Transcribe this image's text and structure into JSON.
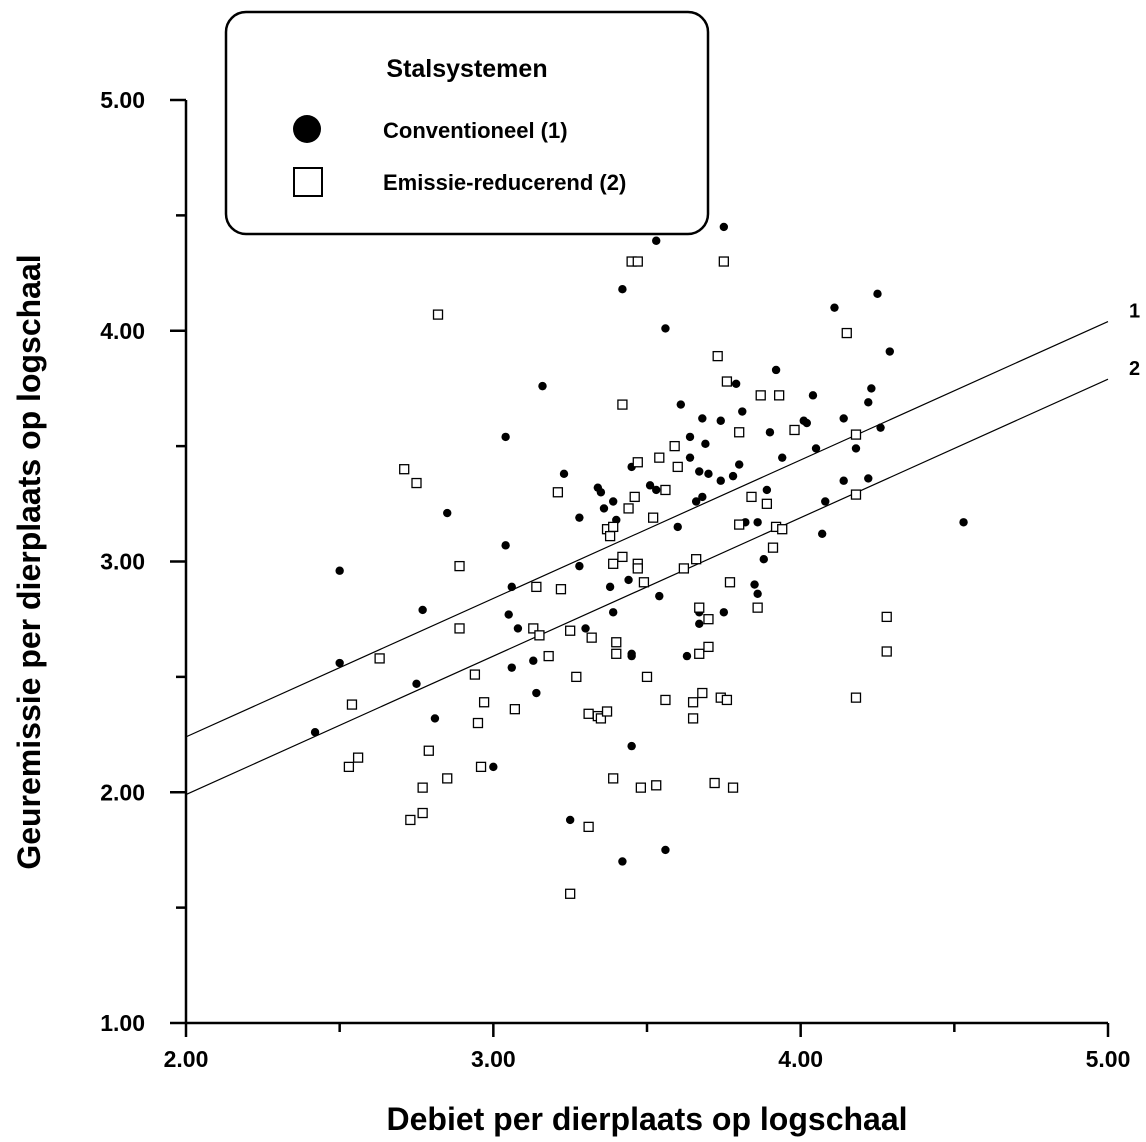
{
  "chart_data": {
    "type": "scatter",
    "xlabel": "Debiet per dierplaats op logschaal",
    "ylabel": "Geuremissie per dierplaats op logschaal",
    "xlim": [
      2.0,
      5.0
    ],
    "ylim": [
      1.0,
      5.0
    ],
    "x_ticks": [
      "2.00",
      "3.00",
      "4.00",
      "5.00"
    ],
    "y_ticks": [
      "1.00",
      "2.00",
      "3.00",
      "4.00",
      "5.00"
    ],
    "x_tick_values": [
      2.0,
      3.0,
      4.0,
      5.0
    ],
    "y_tick_values": [
      1.0,
      2.0,
      3.0,
      4.0,
      5.0
    ],
    "x_minor_ticks": [
      2.5,
      3.5,
      4.5
    ],
    "y_minor_ticks": [
      1.5,
      2.5,
      3.5,
      4.5
    ],
    "grid": false,
    "legend": {
      "title": "Stalsystemen",
      "position": "top-left",
      "entries": [
        "Conventioneel (1)",
        "Emissie-reducerend (2)"
      ]
    },
    "series": [
      {
        "name": "Conventioneel (1)",
        "marker": "filled-circle",
        "color": "#000000",
        "points": [
          [
            2.42,
            2.26
          ],
          [
            2.5,
            2.56
          ],
          [
            2.5,
            2.96
          ],
          [
            2.75,
            2.47
          ],
          [
            2.77,
            2.79
          ],
          [
            2.81,
            2.32
          ],
          [
            2.85,
            3.21
          ],
          [
            2.94,
            2.51
          ],
          [
            3.0,
            2.11
          ],
          [
            3.04,
            3.07
          ],
          [
            3.04,
            3.54
          ],
          [
            3.05,
            2.77
          ],
          [
            3.06,
            2.54
          ],
          [
            3.06,
            2.89
          ],
          [
            3.08,
            2.71
          ],
          [
            3.13,
            2.57
          ],
          [
            3.14,
            2.43
          ],
          [
            3.16,
            3.76
          ],
          [
            3.23,
            3.38
          ],
          [
            3.25,
            1.88
          ],
          [
            3.28,
            2.98
          ],
          [
            3.28,
            3.19
          ],
          [
            3.3,
            2.71
          ],
          [
            3.34,
            3.32
          ],
          [
            3.35,
            3.3
          ],
          [
            3.36,
            3.23
          ],
          [
            3.38,
            2.89
          ],
          [
            3.39,
            2.78
          ],
          [
            3.39,
            3.26
          ],
          [
            3.4,
            3.18
          ],
          [
            3.42,
            1.7
          ],
          [
            3.42,
            3.02
          ],
          [
            3.42,
            4.18
          ],
          [
            3.44,
            2.92
          ],
          [
            3.45,
            2.59
          ],
          [
            3.45,
            2.6
          ],
          [
            3.45,
            2.2
          ],
          [
            3.45,
            3.41
          ],
          [
            3.51,
            3.33
          ],
          [
            3.53,
            4.39
          ],
          [
            3.53,
            3.31
          ],
          [
            3.54,
            2.85
          ],
          [
            3.56,
            1.75
          ],
          [
            3.56,
            4.01
          ],
          [
            3.6,
            3.15
          ],
          [
            3.61,
            3.68
          ],
          [
            3.63,
            2.59
          ],
          [
            3.64,
            3.54
          ],
          [
            3.64,
            3.45
          ],
          [
            3.66,
            3.26
          ],
          [
            3.67,
            2.78
          ],
          [
            3.67,
            2.73
          ],
          [
            3.67,
            3.39
          ],
          [
            3.68,
            3.62
          ],
          [
            3.68,
            3.28
          ],
          [
            3.69,
            3.51
          ],
          [
            3.7,
            3.38
          ],
          [
            3.74,
            3.61
          ],
          [
            3.74,
            3.35
          ],
          [
            3.75,
            4.45
          ],
          [
            3.75,
            2.78
          ],
          [
            3.78,
            3.37
          ],
          [
            3.79,
            3.77
          ],
          [
            3.8,
            3.42
          ],
          [
            3.81,
            3.65
          ],
          [
            3.82,
            3.17
          ],
          [
            3.85,
            2.9
          ],
          [
            3.86,
            3.17
          ],
          [
            3.86,
            2.86
          ],
          [
            3.88,
            3.01
          ],
          [
            3.89,
            3.31
          ],
          [
            3.9,
            3.56
          ],
          [
            3.92,
            3.83
          ],
          [
            3.94,
            3.45
          ],
          [
            4.01,
            3.61
          ],
          [
            4.02,
            3.6
          ],
          [
            4.04,
            3.72
          ],
          [
            4.05,
            3.49
          ],
          [
            4.07,
            3.12
          ],
          [
            4.08,
            3.26
          ],
          [
            4.11,
            4.1
          ],
          [
            4.14,
            3.62
          ],
          [
            4.14,
            3.35
          ],
          [
            4.18,
            3.49
          ],
          [
            4.22,
            3.36
          ],
          [
            4.22,
            3.69
          ],
          [
            4.23,
            3.75
          ],
          [
            4.25,
            4.16
          ],
          [
            4.26,
            3.58
          ],
          [
            4.29,
            3.91
          ],
          [
            4.53,
            3.17
          ]
        ]
      },
      {
        "name": "Emissie-reducerend (2)",
        "marker": "open-square",
        "color": "#000000",
        "points": [
          [
            2.53,
            2.11
          ],
          [
            2.54,
            2.38
          ],
          [
            2.56,
            2.15
          ],
          [
            2.63,
            2.58
          ],
          [
            2.71,
            3.4
          ],
          [
            2.73,
            1.88
          ],
          [
            2.75,
            3.34
          ],
          [
            2.77,
            1.91
          ],
          [
            2.77,
            2.02
          ],
          [
            2.79,
            2.18
          ],
          [
            2.82,
            4.07
          ],
          [
            2.85,
            2.06
          ],
          [
            2.89,
            2.98
          ],
          [
            2.89,
            2.71
          ],
          [
            2.94,
            2.51
          ],
          [
            2.95,
            2.3
          ],
          [
            2.96,
            2.11
          ],
          [
            2.97,
            2.39
          ],
          [
            3.07,
            2.36
          ],
          [
            3.13,
            2.71
          ],
          [
            3.14,
            2.89
          ],
          [
            3.15,
            2.68
          ],
          [
            3.18,
            2.59
          ],
          [
            3.21,
            3.3
          ],
          [
            3.22,
            2.88
          ],
          [
            3.25,
            1.56
          ],
          [
            3.25,
            2.7
          ],
          [
            3.27,
            2.5
          ],
          [
            3.31,
            1.85
          ],
          [
            3.31,
            2.34
          ],
          [
            3.32,
            2.67
          ],
          [
            3.34,
            2.33
          ],
          [
            3.35,
            2.32
          ],
          [
            3.37,
            2.35
          ],
          [
            3.37,
            3.14
          ],
          [
            3.38,
            3.11
          ],
          [
            3.39,
            2.99
          ],
          [
            3.39,
            2.06
          ],
          [
            3.39,
            3.15
          ],
          [
            3.4,
            2.65
          ],
          [
            3.4,
            2.6
          ],
          [
            3.42,
            3.68
          ],
          [
            3.42,
            3.02
          ],
          [
            3.44,
            3.23
          ],
          [
            3.45,
            4.3
          ],
          [
            3.46,
            3.28
          ],
          [
            3.47,
            4.3
          ],
          [
            3.47,
            3.43
          ],
          [
            3.47,
            2.99
          ],
          [
            3.47,
            2.97
          ],
          [
            3.48,
            2.02
          ],
          [
            3.49,
            2.91
          ],
          [
            3.5,
            2.5
          ],
          [
            3.52,
            3.19
          ],
          [
            3.53,
            2.03
          ],
          [
            3.54,
            3.45
          ],
          [
            3.56,
            2.4
          ],
          [
            3.56,
            3.31
          ],
          [
            3.59,
            3.5
          ],
          [
            3.6,
            3.41
          ],
          [
            3.62,
            2.97
          ],
          [
            3.65,
            2.32
          ],
          [
            3.65,
            2.39
          ],
          [
            3.66,
            3.01
          ],
          [
            3.67,
            2.6
          ],
          [
            3.67,
            2.8
          ],
          [
            3.68,
            2.43
          ],
          [
            3.7,
            2.75
          ],
          [
            3.7,
            2.63
          ],
          [
            3.72,
            2.04
          ],
          [
            3.73,
            3.89
          ],
          [
            3.74,
            2.41
          ],
          [
            3.75,
            4.3
          ],
          [
            3.76,
            3.78
          ],
          [
            3.76,
            2.4
          ],
          [
            3.77,
            2.91
          ],
          [
            3.78,
            2.02
          ],
          [
            3.8,
            3.16
          ],
          [
            3.8,
            3.56
          ],
          [
            3.84,
            3.28
          ],
          [
            3.86,
            2.8
          ],
          [
            3.87,
            3.72
          ],
          [
            3.89,
            3.25
          ],
          [
            3.91,
            3.06
          ],
          [
            3.92,
            3.15
          ],
          [
            3.93,
            3.72
          ],
          [
            3.94,
            3.14
          ],
          [
            3.98,
            3.57
          ],
          [
            4.15,
            3.99
          ],
          [
            4.18,
            2.41
          ],
          [
            4.18,
            3.29
          ],
          [
            4.18,
            3.55
          ],
          [
            4.28,
            2.61
          ],
          [
            4.28,
            2.76
          ]
        ]
      }
    ],
    "regression_lines": [
      {
        "label": "1",
        "x": [
          2.0,
          5.0
        ],
        "y": [
          2.24,
          4.04
        ]
      },
      {
        "label": "2",
        "x": [
          2.0,
          5.0
        ],
        "y": [
          1.99,
          3.79
        ]
      }
    ]
  }
}
